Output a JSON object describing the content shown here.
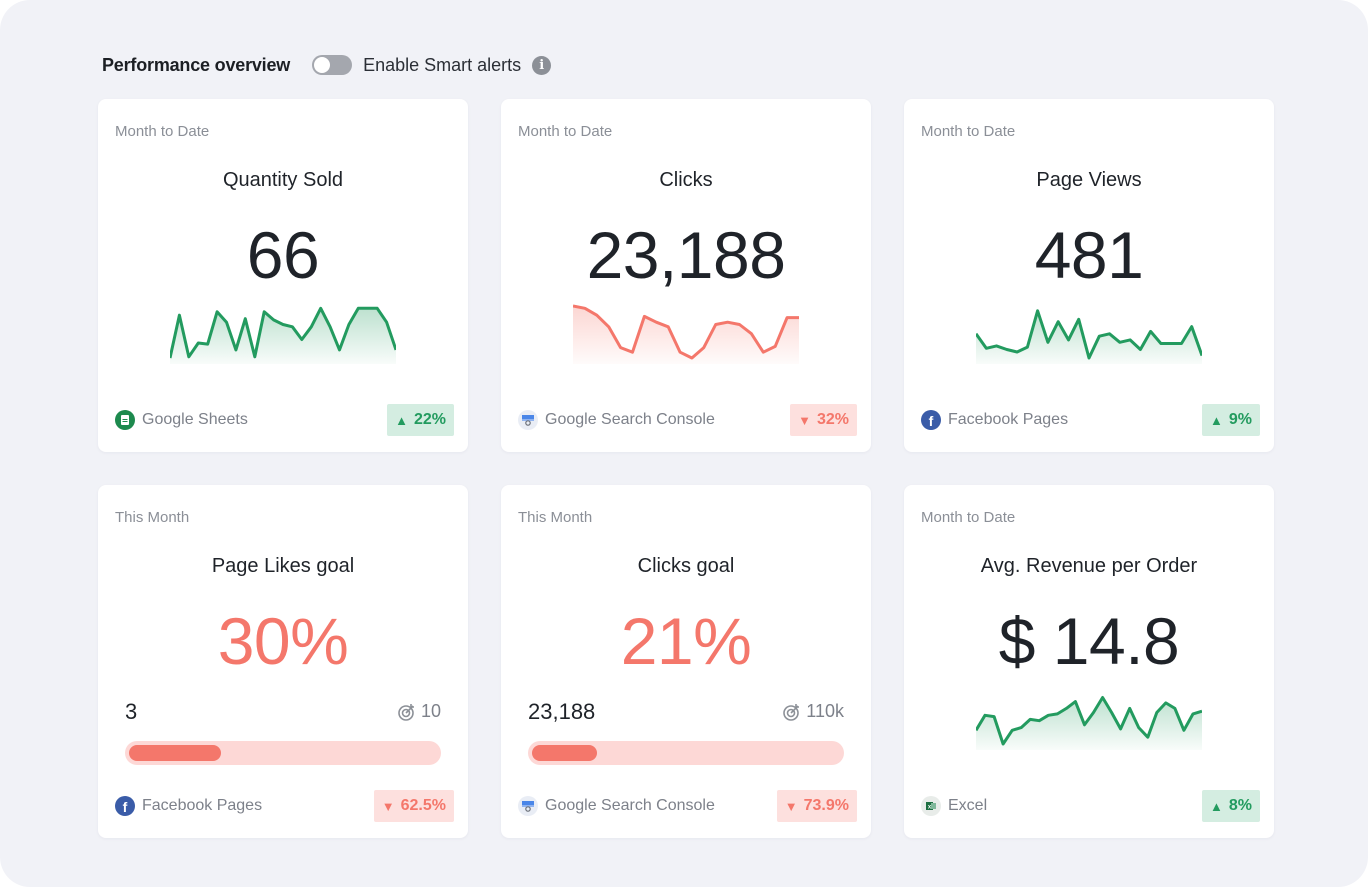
{
  "header": {
    "title": "Performance overview",
    "toggle_label": "Enable Smart alerts",
    "toggle_on": false
  },
  "colors": {
    "positive": "#239b5f",
    "negative": "#f4776b",
    "badge_up_bg": "#d4ede1",
    "badge_down_bg": "#fde0de"
  },
  "cards": [
    {
      "period": "Month to Date",
      "title": "Quantity Sold",
      "value": "66",
      "source": "Google Sheets",
      "source_icon": "google-sheets-icon",
      "trend": "up",
      "change": "22%",
      "sparkline_color": "#239b5f",
      "sparkline": [
        45,
        8,
        44,
        32,
        33,
        5,
        14,
        38,
        11,
        44,
        5,
        12,
        16,
        18,
        29,
        18,
        2,
        18,
        38,
        16,
        2,
        2,
        2,
        14,
        38
      ]
    },
    {
      "period": "Month to Date",
      "title": "Clicks",
      "value": "23,188",
      "source": "Google Search Console",
      "source_icon": "google-search-console-icon",
      "trend": "down",
      "change": "32%",
      "sparkline_color": "#f4776b",
      "sparkline": [
        0,
        2,
        8,
        18,
        36,
        40,
        9,
        14,
        18,
        40,
        45,
        36,
        16,
        14,
        16,
        24,
        40,
        35,
        10,
        10
      ]
    },
    {
      "period": "Month to Date",
      "title": "Page Views",
      "value": "481",
      "source": "Facebook Pages",
      "source_icon": "facebook-icon",
      "trend": "up",
      "change": "9%",
      "sparkline_color": "#239b5f",
      "sparkline": [
        23,
        35,
        33,
        36,
        38,
        34,
        4,
        30,
        13,
        28,
        11,
        43,
        25,
        23,
        30,
        28,
        36,
        21,
        31,
        31,
        31,
        17,
        41
      ]
    },
    {
      "period": "This Month",
      "title": "Page Likes goal",
      "value": "30%",
      "current": "3",
      "target": "10",
      "progress": 0.3,
      "source": "Facebook Pages",
      "source_icon": "facebook-icon",
      "trend": "down",
      "change": "62.5%"
    },
    {
      "period": "This Month",
      "title": "Clicks goal",
      "value": "21%",
      "current": "23,188",
      "target": "110k",
      "progress": 0.21,
      "source": "Google Search Console",
      "source_icon": "google-search-console-icon",
      "trend": "down",
      "change": "73.9%"
    },
    {
      "period": "Month to Date",
      "title": "Avg. Revenue per Order",
      "value": "$ 14.8",
      "source": "Excel",
      "source_icon": "excel-icon",
      "trend": "up",
      "change": "8%",
      "sparkline_color": "#239b5f",
      "sparkline": [
        28,
        17,
        18,
        38,
        28,
        26,
        20,
        21,
        17,
        16,
        12,
        7,
        24,
        15,
        4,
        15,
        27,
        12,
        26,
        33,
        15,
        8,
        12,
        28,
        16,
        14
      ]
    }
  ]
}
